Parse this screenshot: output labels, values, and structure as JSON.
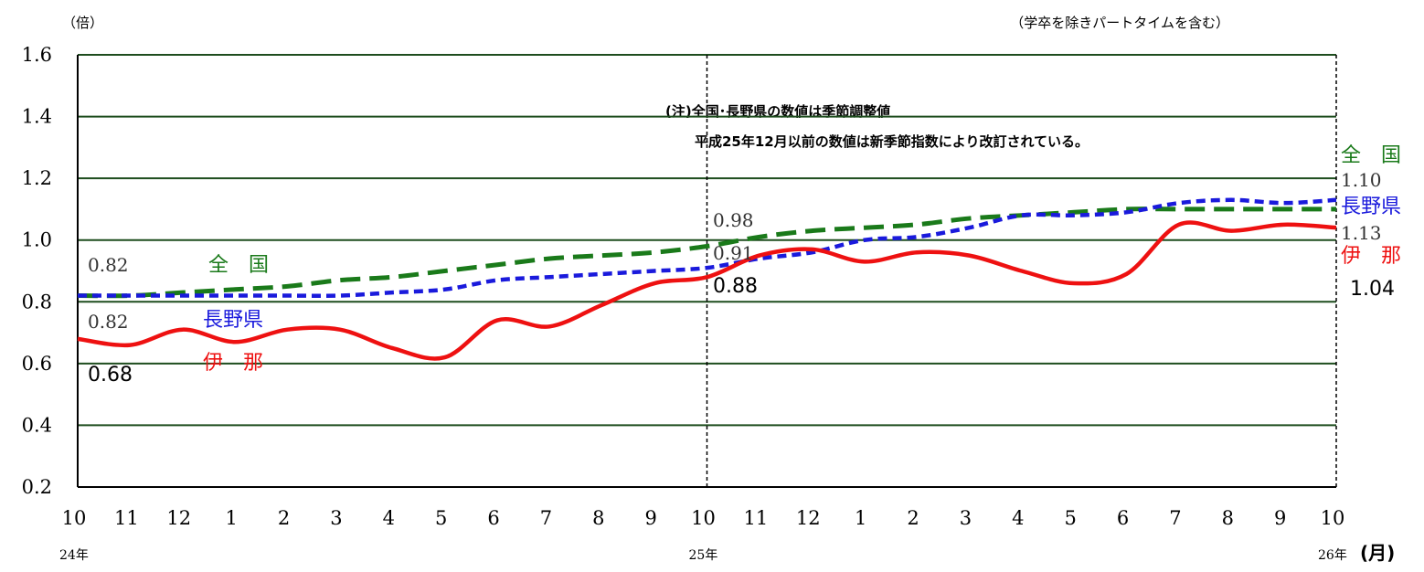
{
  "chart_data": {
    "type": "line",
    "unit_label": "（倍）",
    "xunit_label": "(月)",
    "subtitle": "（学卒を除きパートタイムを含む）",
    "note_line1": "(注)全国･長野県の数値は季節調整値",
    "note_line2": "平成25年12月以前の数値は新季節指数により改訂されている。",
    "categories": [
      "10",
      "11",
      "12",
      "1",
      "2",
      "3",
      "4",
      "5",
      "6",
      "7",
      "8",
      "9",
      "10",
      "11",
      "12",
      "1",
      "2",
      "3",
      "4",
      "5",
      "6",
      "7",
      "8",
      "9",
      "10"
    ],
    "year_labels": [
      {
        "index": 0,
        "text": "24年"
      },
      {
        "index": 12,
        "text": "25年"
      },
      {
        "index": 24,
        "text": "26年"
      }
    ],
    "ylim": [
      0.2,
      1.6
    ],
    "yticks": [
      "0.2",
      "0.4",
      "0.6",
      "0.8",
      "1.0",
      "1.2",
      "1.4",
      "1.6"
    ],
    "ytick_values": [
      0.2,
      0.4,
      0.6,
      0.8,
      1.0,
      1.2,
      1.4,
      1.6
    ],
    "series": [
      {
        "name": "全　国",
        "color": "#1a7a1a",
        "style": "dashed-long",
        "values": [
          0.82,
          0.82,
          0.83,
          0.84,
          0.85,
          0.87,
          0.88,
          0.9,
          0.92,
          0.94,
          0.95,
          0.96,
          0.98,
          1.01,
          1.03,
          1.04,
          1.05,
          1.07,
          1.08,
          1.09,
          1.1,
          1.1,
          1.1,
          1.1,
          1.1
        ]
      },
      {
        "name": "長野県",
        "color": "#1a1adc",
        "style": "dashed-short",
        "values": [
          0.82,
          0.82,
          0.82,
          0.82,
          0.82,
          0.82,
          0.83,
          0.84,
          0.87,
          0.88,
          0.89,
          0.9,
          0.91,
          0.94,
          0.96,
          1.0,
          1.01,
          1.04,
          1.08,
          1.08,
          1.09,
          1.12,
          1.13,
          1.12,
          1.13
        ]
      },
      {
        "name": "伊　那",
        "color": "#ee1111",
        "style": "solid",
        "values": [
          0.68,
          0.66,
          0.71,
          0.67,
          0.71,
          0.71,
          0.65,
          0.62,
          0.74,
          0.72,
          0.79,
          0.86,
          0.88,
          0.95,
          0.97,
          0.93,
          0.96,
          0.95,
          0.9,
          0.86,
          0.89,
          1.05,
          1.03,
          1.05,
          1.04
        ]
      }
    ],
    "value_labels": {
      "start": [
        "0.82",
        "0.82",
        "0.68"
      ],
      "mid": [
        "0.98",
        "0.91",
        "0.88"
      ],
      "end": [
        "1.10",
        "1.13",
        "1.04"
      ]
    },
    "vlines_at_index": [
      12,
      24
    ],
    "grid": true
  }
}
